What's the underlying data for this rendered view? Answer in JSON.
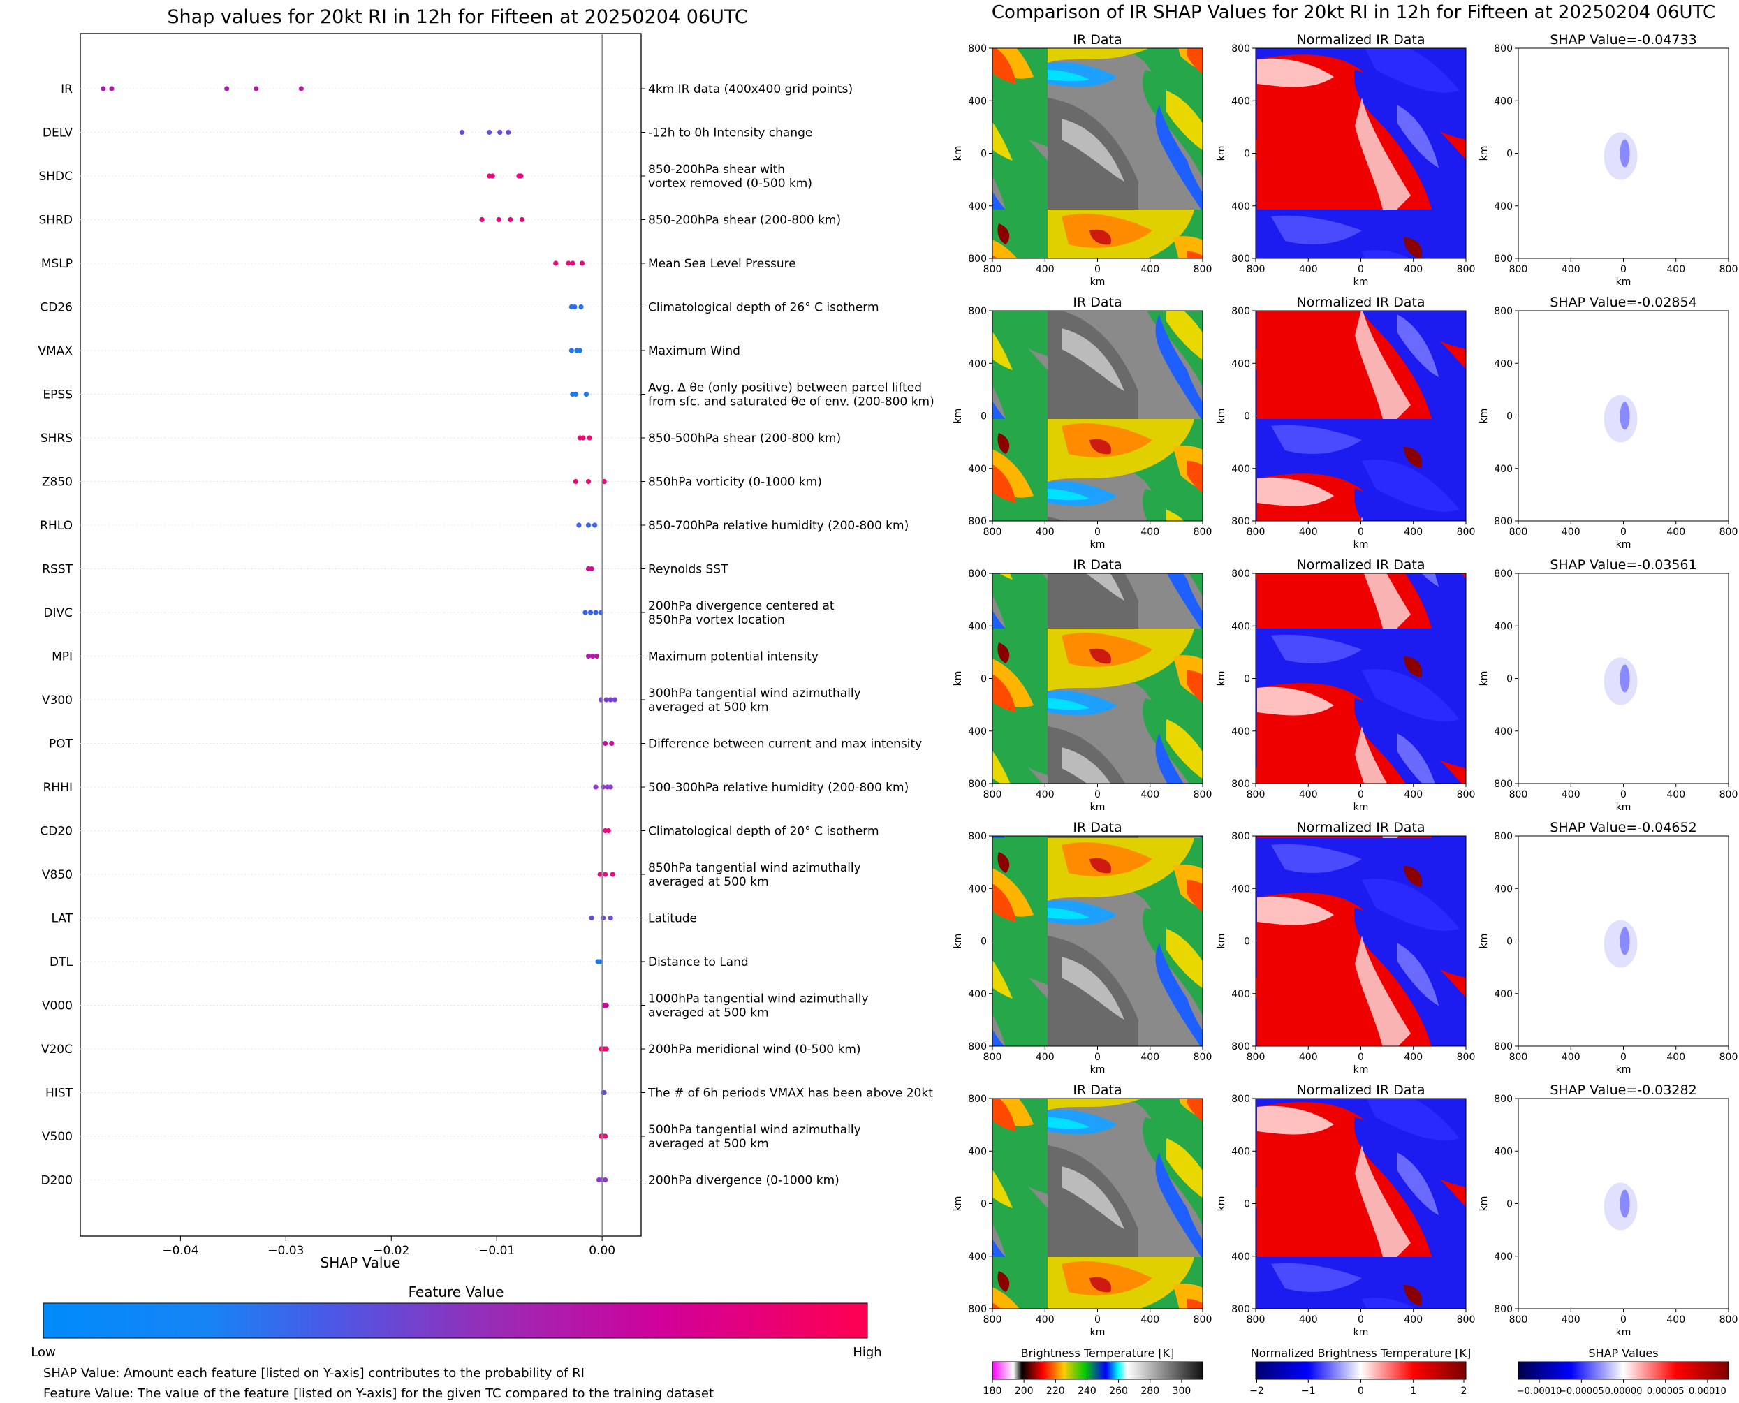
{
  "left_title": "Shap values for 20kt RI in 12h for Fifteen at 20250204 06UTC",
  "right_title": "Comparison of IR SHAP Values for 20kt RI in 12h for Fifteen at 20250204 06UTC",
  "colorbar": {
    "title": "Feature Value",
    "low": "Low",
    "high": "High",
    "colors": [
      "#008bfb",
      "#4b58e6",
      "#9a2bb5",
      "#d1009a",
      "#ff0052"
    ]
  },
  "notes": [
    "SHAP Value: Amount each feature [listed on Y-axis] contributes to the probability of RI",
    "Feature Value: The value of the feature [listed on Y-axis] for the given TC compared to the training dataset"
  ],
  "panels": {
    "col_titles": [
      "IR Data",
      "Normalized IR Data"
    ],
    "shap_titles": [
      "SHAP Value=-0.04733",
      "SHAP Value=-0.02854",
      "SHAP Value=-0.03561",
      "SHAP Value=-0.04652",
      "SHAP Value=-0.03282"
    ],
    "tick_labels": [
      "800",
      "400",
      "0",
      "400",
      "800"
    ],
    "axis_unit": "km"
  },
  "bottom_colorbars": [
    {
      "title": "Brightness Temperature [K]",
      "ticks": [
        "180",
        "200",
        "220",
        "240",
        "260",
        "280",
        "300"
      ]
    },
    {
      "title": "Normalized Brightness Temperature [K]",
      "ticks": [
        "−2",
        "−1",
        "0",
        "1",
        "2"
      ]
    },
    {
      "title": "SHAP Values",
      "ticks": [
        "−0.00010",
        "−0.00005",
        "0.00000",
        "0.00005",
        "0.00010"
      ]
    }
  ],
  "chart_data": {
    "type": "scatter",
    "title": "Shap values for 20kt RI in 12h for Fifteen at 20250204 06UTC",
    "xlabel": "SHAP Value",
    "ylabel": "",
    "xlim": [
      -0.0495,
      0.0037
    ],
    "xticks": [
      "−0.04",
      "−0.03",
      "−0.02",
      "−0.01",
      "0.00"
    ],
    "xtick_values": [
      -0.04,
      -0.03,
      -0.02,
      -0.01,
      0.0
    ],
    "grid": false,
    "features": [
      {
        "name": "IR",
        "description": "4km IR data (400x400 grid points)",
        "points": [
          -0.04733,
          -0.04652,
          -0.03561,
          -0.03282,
          -0.02854
        ],
        "color": "#b51ab0"
      },
      {
        "name": "DELV",
        "description": "-12h to 0h Intensity change",
        "points": [
          -0.0133,
          -0.0107,
          -0.0097,
          -0.0089
        ],
        "color": "#6b4ad9"
      },
      {
        "name": "SHDC",
        "description": "850-200hPa shear with|vortex removed (0-500 km)",
        "points": [
          -0.0107,
          -0.0104,
          -0.0079,
          -0.0077
        ],
        "color": "#e8057a"
      },
      {
        "name": "SHRD",
        "description": "850-200hPa shear (200-800 km)",
        "points": [
          -0.0114,
          -0.0098,
          -0.0087,
          -0.0076
        ],
        "color": "#e8057a"
      },
      {
        "name": "MSLP",
        "description": "Mean Sea Level Pressure",
        "points": [
          -0.0044,
          -0.0032,
          -0.0028,
          -0.0019
        ],
        "color": "#e8097a"
      },
      {
        "name": "CD26",
        "description": "Climatological depth of 26° C isotherm",
        "points": [
          -0.0029,
          -0.0026,
          -0.002
        ],
        "color": "#2a6ff0"
      },
      {
        "name": "VMAX",
        "description": "Maximum Wind",
        "points": [
          -0.0029,
          -0.0024,
          -0.0021
        ],
        "color": "#1a7af2"
      },
      {
        "name": "EPSS",
        "description": "Avg. Δ θe (only positive) between parcel lifted|from sfc. and saturated θe of env. (200-800 km)",
        "points": [
          -0.0028,
          -0.0025,
          -0.0015
        ],
        "color": "#1a7af2"
      },
      {
        "name": "SHRS",
        "description": "850-500hPa shear (200-800 km)",
        "points": [
          -0.0021,
          -0.0018,
          -0.0012
        ],
        "color": "#f0086e"
      },
      {
        "name": "Z850",
        "description": "850hPa vorticity (0-1000 km)",
        "points": [
          -0.0025,
          -0.0013,
          0.0002
        ],
        "color": "#e8097a"
      },
      {
        "name": "RHLO",
        "description": "850-700hPa relative humidity (200-800 km)",
        "points": [
          -0.0022,
          -0.0013,
          -0.0007
        ],
        "color": "#3a64e8"
      },
      {
        "name": "RSST",
        "description": "Reynolds SST",
        "points": [
          -0.0013,
          -0.001
        ],
        "color": "#d40a90"
      },
      {
        "name": "DIVC",
        "description": "200hPa divergence centered at|850hPa vortex location",
        "points": [
          -0.0016,
          -0.0011,
          -0.0006,
          -0.0001
        ],
        "color": "#3a64e8"
      },
      {
        "name": "MPI",
        "description": "Maximum potential intensity",
        "points": [
          -0.0013,
          -0.0009,
          -0.0005
        ],
        "color": "#b31aa8"
      },
      {
        "name": "V300",
        "description": "300hPa tangential wind azimuthally|averaged at 500 km",
        "points": [
          -0.0001,
          0.0004,
          0.0008,
          0.0012
        ],
        "color": "#7a40d0"
      },
      {
        "name": "POT",
        "description": "Difference between current and max intensity",
        "points": [
          0.0003,
          0.0009
        ],
        "color": "#c0129f"
      },
      {
        "name": "RHHI",
        "description": "500-300hPa relative humidity (200-800 km)",
        "points": [
          -0.0006,
          0.0001,
          0.0005,
          0.0008
        ],
        "color": "#8a3acb"
      },
      {
        "name": "CD20",
        "description": "Climatological depth of 20° C isotherm",
        "points": [
          0.0003,
          0.0006
        ],
        "color": "#e8097a"
      },
      {
        "name": "V850",
        "description": "850hPa tangential wind azimuthally|averaged at 500 km",
        "points": [
          -0.0002,
          0.0003,
          0.001
        ],
        "color": "#e0107e"
      },
      {
        "name": "LAT",
        "description": "Latitude",
        "points": [
          -0.001,
          0.0001,
          0.0008
        ],
        "color": "#6a4ad9"
      },
      {
        "name": "DTL",
        "description": "Distance to Land",
        "points": [
          -0.0004,
          -0.0002
        ],
        "color": "#1a7af2"
      },
      {
        "name": "V000",
        "description": "1000hPa tangential wind azimuthally|averaged at 500 km",
        "points": [
          0.0002,
          0.0004
        ],
        "color": "#d1009a"
      },
      {
        "name": "V20C",
        "description": "200hPa meridional wind (0-500 km)",
        "points": [
          -0.0001,
          0.0002,
          0.0004
        ],
        "color": "#f00870"
      },
      {
        "name": "HIST",
        "description": "The # of 6h periods VMAX has been above 20kt",
        "points": [
          0.0001,
          0.0002
        ],
        "color": "#6a4ad9"
      },
      {
        "name": "V500",
        "description": "500hPa tangential wind azimuthally|averaged at 500 km",
        "points": [
          -0.0001,
          0.0001,
          0.0003
        ],
        "color": "#e0107e"
      },
      {
        "name": "D200",
        "description": "200hPa divergence (0-1000 km)",
        "points": [
          -0.0003,
          0.0,
          0.0003
        ],
        "color": "#8a3acb"
      }
    ]
  }
}
